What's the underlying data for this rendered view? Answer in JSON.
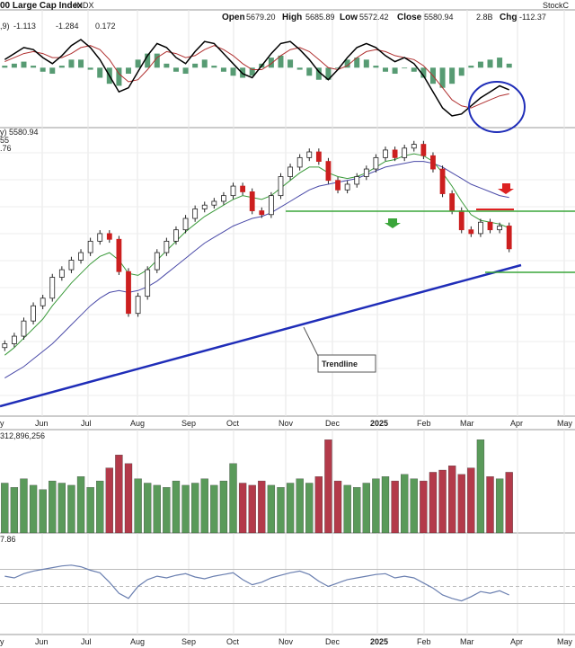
{
  "header": {
    "title": "00 Large Cap Index",
    "exchange": "INDX",
    "open_label": "Open",
    "open": "5679.20",
    "high_label": "High",
    "high": "5685.89",
    "low_label": "Low",
    "low": "5572.42",
    "close_label": "Close",
    "close": "5580.94",
    "vol": "2.8B",
    "chg_label": "Chg",
    "chg": "-112.37",
    "watermark": "StockC"
  },
  "macd_panel": {
    "label_prefix": ",9)",
    "macd": "-1.113",
    "signal": "-1.284",
    "hist": "0.172"
  },
  "price_panel": {
    "legend_price": "y) 5580.94",
    "legend_ma1": "55",
    "legend_ma2": ".76",
    "annotation": "Trendline"
  },
  "volume_panel": {
    "label": "312,896,256"
  },
  "rsi_panel": {
    "label": "7.86"
  },
  "x_axis_labels": [
    "y",
    "Jun",
    "Jul",
    "Aug",
    "Sep",
    "Oct",
    "Nov",
    "Dec",
    "2025",
    "Feb",
    "Mar",
    "Apr",
    "May"
  ],
  "colors": {
    "up": "#2e8b2e",
    "down": "#cc1f1f",
    "volume_up": "#5a9a5a",
    "volume_down": "#b33a4a",
    "ma_fast": "#3a9a3a",
    "ma_slow": "#4a4aa8",
    "trendline": "#1f2db8",
    "support": "#3aa53a",
    "resistance": "#dd2222",
    "circle": "#1f2db8",
    "macd_line": "#000000",
    "signal_line": "#b03030",
    "histogram": "#3a8a5a",
    "rsi_line": "#6a7fb0"
  },
  "chart_data": {
    "type": "candlestick",
    "x_ticks": [
      "Jun",
      "Jul",
      "Aug",
      "Sep",
      "Oct",
      "Nov",
      "Dec",
      "2025",
      "Feb",
      "Mar",
      "Apr",
      "May"
    ],
    "price_closes": [
      5080,
      5120,
      5200,
      5280,
      5320,
      5430,
      5470,
      5520,
      5560,
      5620,
      5660,
      5630,
      5460,
      5240,
      5330,
      5470,
      5560,
      5620,
      5680,
      5740,
      5790,
      5810,
      5830,
      5860,
      5910,
      5880,
      5780,
      5760,
      5860,
      5960,
      6010,
      6060,
      6090,
      6040,
      5940,
      5890,
      5920,
      5960,
      6000,
      6060,
      6100,
      6060,
      6110,
      6130,
      6070,
      6000,
      5870,
      5780,
      5680,
      5660,
      5720,
      5680,
      5700,
      5580
    ],
    "ma_fast": [
      5020,
      5060,
      5110,
      5160,
      5210,
      5280,
      5340,
      5400,
      5450,
      5500,
      5540,
      5560,
      5520,
      5450,
      5440,
      5470,
      5520,
      5570,
      5620,
      5670,
      5710,
      5750,
      5780,
      5810,
      5840,
      5860,
      5850,
      5840,
      5860,
      5900,
      5940,
      5980,
      6010,
      6010,
      5980,
      5960,
      5950,
      5960,
      5980,
      6010,
      6040,
      6050,
      6070,
      6080,
      6070,
      6040,
      5980,
      5910,
      5830,
      5760,
      5730,
      5720,
      5710,
      5690
    ],
    "ma_slow": [
      4900,
      4930,
      4960,
      5000,
      5040,
      5080,
      5130,
      5180,
      5230,
      5280,
      5320,
      5350,
      5360,
      5350,
      5360,
      5380,
      5410,
      5450,
      5490,
      5530,
      5570,
      5610,
      5640,
      5670,
      5700,
      5720,
      5740,
      5750,
      5770,
      5800,
      5830,
      5860,
      5890,
      5910,
      5920,
      5930,
      5940,
      5950,
      5970,
      5990,
      6010,
      6020,
      6030,
      6040,
      6040,
      6030,
      6010,
      5980,
      5950,
      5920,
      5900,
      5880,
      5860,
      5850
    ],
    "support_level": 5780,
    "resistance_level": 5780,
    "volume": [
      2.3,
      2.1,
      2.5,
      2.2,
      2.0,
      2.4,
      2.3,
      2.2,
      2.6,
      2.1,
      2.4,
      3.0,
      3.6,
      3.2,
      2.5,
      2.3,
      2.2,
      2.1,
      2.4,
      2.2,
      2.3,
      2.5,
      2.2,
      2.4,
      3.2,
      2.3,
      2.2,
      2.4,
      2.2,
      2.1,
      2.3,
      2.5,
      2.3,
      2.6,
      4.3,
      2.4,
      2.2,
      2.1,
      2.3,
      2.5,
      2.6,
      2.4,
      2.7,
      2.5,
      2.4,
      2.8,
      2.9,
      3.1,
      2.7,
      3.0,
      4.3,
      2.6,
      2.5,
      2.8
    ],
    "rsi": [
      62,
      60,
      65,
      68,
      70,
      72,
      74,
      75,
      73,
      69,
      66,
      55,
      42,
      36,
      50,
      58,
      62,
      60,
      63,
      65,
      61,
      59,
      62,
      64,
      66,
      58,
      52,
      55,
      60,
      63,
      66,
      68,
      64,
      56,
      50,
      54,
      58,
      60,
      62,
      64,
      65,
      60,
      62,
      60,
      54,
      48,
      40,
      36,
      33,
      38,
      44,
      42,
      45,
      40
    ],
    "macd": [
      0.4,
      0.7,
      1.0,
      0.9,
      0.5,
      0.2,
      0.6,
      1.1,
      1.4,
      1.0,
      0.4,
      -0.4,
      -1.2,
      -1.0,
      -0.2,
      0.6,
      1.2,
      1.0,
      0.5,
      0.2,
      0.8,
      1.3,
      1.2,
      0.7,
      0.2,
      -0.3,
      -0.5,
      0.1,
      0.7,
      1.2,
      1.3,
      0.9,
      0.4,
      -0.2,
      -0.6,
      -0.1,
      0.5,
      1.0,
      1.2,
      1.0,
      0.6,
      0.3,
      0.5,
      0.2,
      -0.4,
      -1.2,
      -2.0,
      -2.4,
      -2.3,
      -1.9,
      -1.5,
      -1.2,
      -0.9,
      -1.1
    ],
    "signal": [
      0.3,
      0.5,
      0.7,
      0.8,
      0.7,
      0.5,
      0.5,
      0.7,
      1.0,
      1.1,
      0.9,
      0.4,
      -0.3,
      -0.7,
      -0.6,
      -0.1,
      0.5,
      0.8,
      0.7,
      0.5,
      0.6,
      0.9,
      1.1,
      0.9,
      0.6,
      0.2,
      -0.1,
      -0.1,
      0.2,
      0.6,
      0.9,
      1.0,
      0.8,
      0.4,
      0.0,
      -0.1,
      0.1,
      0.5,
      0.8,
      0.9,
      0.8,
      0.6,
      0.5,
      0.4,
      0.1,
      -0.4,
      -1.0,
      -1.6,
      -1.9,
      -2.0,
      -1.8,
      -1.6,
      -1.4,
      -1.3
    ]
  }
}
